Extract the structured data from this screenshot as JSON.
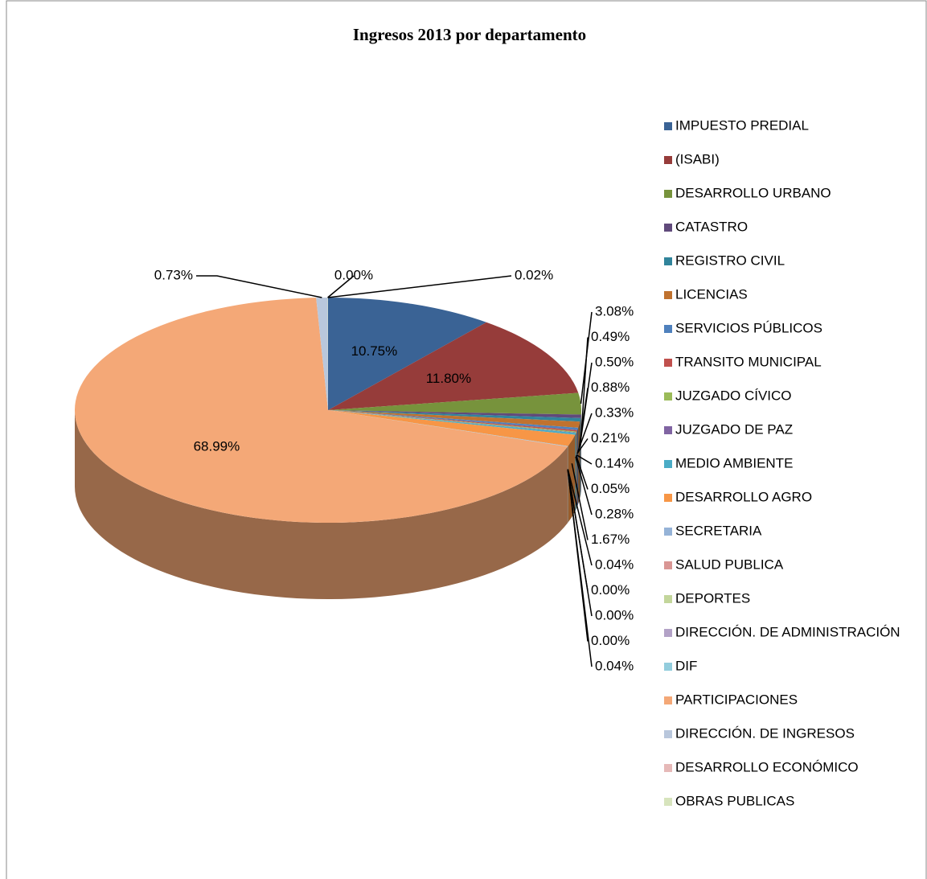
{
  "chart_data": {
    "type": "pie",
    "title": "Ingresos 2013  por departamento",
    "categories": [
      "IMPUESTO PREDIAL",
      "(ISABI)",
      "DESARROLLO URBANO",
      "CATASTRO",
      "REGISTRO CIVIL",
      "LICENCIAS",
      "SERVICIOS PÚBLICOS",
      "TRANSITO MUNICIPAL",
      "JUZGADO CÍVICO",
      "JUZGADO DE PAZ",
      "MEDIO AMBIENTE",
      "DESARROLLO AGRO",
      "SECRETARIA",
      "SALUD PUBLICA",
      "DEPORTES",
      "DIRECCIÓN. DE ADMINISTRACIÓN",
      "DIF",
      "PARTICIPACIONES",
      "DIRECCIÓN. DE INGRESOS",
      "DESARROLLO ECONÓMICO",
      "OBRAS PUBLICAS"
    ],
    "values": [
      10.75,
      11.8,
      3.08,
      0.49,
      0.5,
      0.88,
      0.33,
      0.21,
      0.14,
      0.05,
      0.28,
      1.67,
      0.04,
      0.0,
      0.0,
      0.0,
      0.04,
      68.99,
      0.73,
      0.0,
      0.02
    ],
    "value_labels": [
      "10.75%",
      "11.80%",
      "3.08%",
      "0.49%",
      "0.50%",
      "0.88%",
      "0.33%",
      "0.21%",
      "0.14%",
      "0.05%",
      "0.28%",
      "1.67%",
      "0.04%",
      "0.00%",
      "0.00%",
      "0.00%",
      "0.04%",
      "68.99%",
      "0.73%",
      "0.00%",
      "0.02%"
    ],
    "colors": [
      "#3a6395",
      "#963c3a",
      "#77933c",
      "#604a7b",
      "#31849b",
      "#c0722f",
      "#4f81bd",
      "#c0504d",
      "#9bbb59",
      "#8064a2",
      "#4bacc6",
      "#f79646",
      "#95b3d7",
      "#d99694",
      "#c3d69b",
      "#b3a2c7",
      "#93cddd",
      "#f4a877",
      "#b9c7dc",
      "#e6b9b8",
      "#d7e4bd"
    ],
    "legend": "right"
  }
}
